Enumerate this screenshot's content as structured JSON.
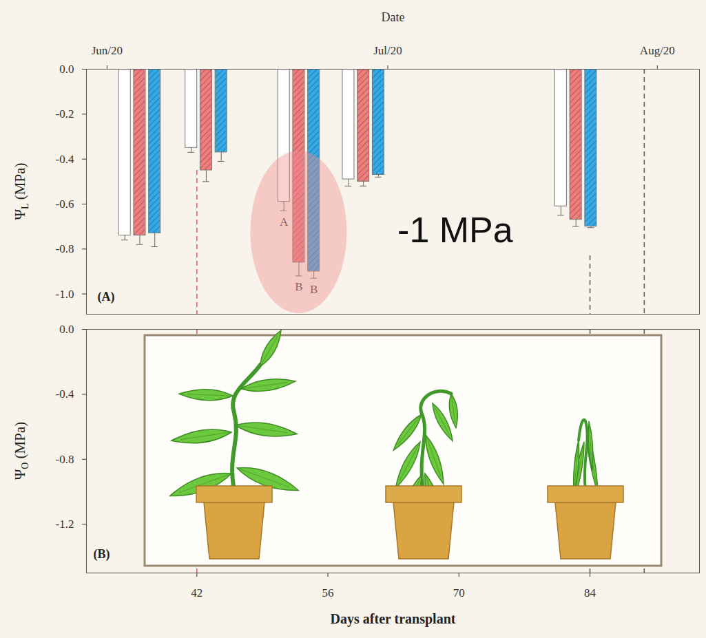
{
  "chart_data": [
    {
      "type": "bar",
      "panel": "(A)",
      "ylabel": "ΨL (MPa)",
      "x2label": "Date",
      "x2ticks": [
        {
          "value": 32.4,
          "label": "Jun/20"
        },
        {
          "value": 62.4,
          "label": "Jul/20"
        },
        {
          "value": 91.2,
          "label": "Aug/20"
        }
      ],
      "xlim": [
        30.2,
        95.7
      ],
      "x": [
        35.9,
        43,
        52.9,
        59.8,
        82.5
      ],
      "ylim": [
        -1.09,
        0
      ],
      "yticks": [
        {
          "value": 0,
          "label": "0.0"
        },
        -0.2,
        -0.4,
        -0.6,
        -0.8,
        {
          "value": -1,
          "label": "-1.0"
        }
      ],
      "series": [
        {
          "color": "#ffffff",
          "values": [
            -0.74,
            -0.35,
            -0.59,
            -0.49,
            -0.61
          ],
          "errors": [
            0.02,
            0.02,
            0.04,
            0.03,
            0.04
          ],
          "letters": [
            null,
            null,
            "A",
            null,
            null
          ]
        },
        {
          "color": "#ee7d7d",
          "values": [
            -0.74,
            -0.45,
            -0.86,
            -0.5,
            -0.67
          ],
          "errors": [
            0.04,
            0.05,
            0.06,
            0.02,
            0.03
          ],
          "letters": [
            null,
            null,
            "B",
            null,
            null
          ]
        },
        {
          "color": "#35a8e6",
          "values": [
            -0.73,
            -0.37,
            -0.9,
            -0.47,
            -0.7
          ],
          "errors": [
            0.06,
            0.04,
            0.03,
            0.01,
            0.005
          ],
          "letters": [
            null,
            null,
            "B",
            null,
            null
          ]
        }
      ],
      "annotations": [
        {
          "text": "-1 MPa",
          "x": 69.6,
          "y": -0.72
        }
      ],
      "reference_lines": [
        {
          "x": 42,
          "color": "#e05a5a",
          "from": -0.45,
          "line_style": "dashed"
        },
        {
          "x": 84,
          "color": "#555555",
          "from": -0.83,
          "line_style": "dashed"
        },
        {
          "x": 89.8,
          "color": "#555555",
          "from": 0,
          "line_style": "dashed"
        }
      ]
    },
    {
      "type": "bar",
      "panel": "(B)",
      "ylabel": "ΨO (MPa)",
      "xlabel": "Days after transplant",
      "xlim": [
        30.2,
        95.7
      ],
      "xticks": [
        42,
        56,
        70,
        84
      ],
      "ylim": [
        -1.5,
        0
      ],
      "yticks": [
        {
          "value": 0,
          "label": "0.0"
        },
        -0.4,
        -0.8,
        -1.2
      ],
      "reference_lines": [
        {
          "x": 42,
          "color": "#e05a5a",
          "from": 0,
          "line_style": "dashed"
        },
        {
          "x": 84,
          "color": "#555555",
          "from": 0,
          "line_style": "dashed"
        },
        {
          "x": 89.8,
          "color": "#555555",
          "from": 0,
          "line_style": "dashed"
        }
      ]
    }
  ]
}
